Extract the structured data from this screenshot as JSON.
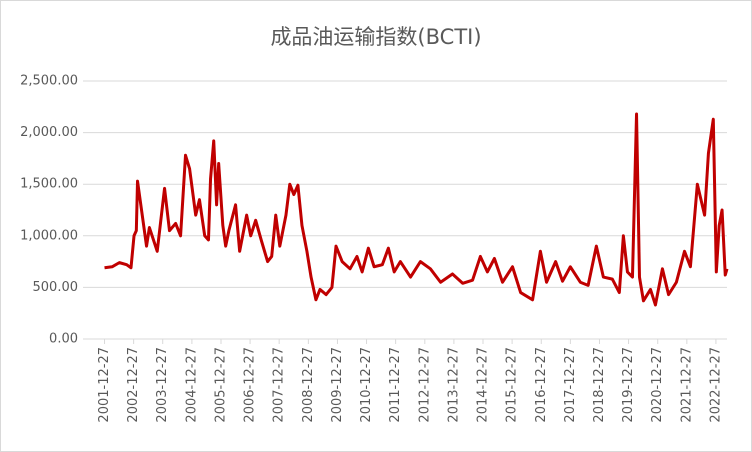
{
  "chart_data": {
    "type": "line",
    "title": "成品油运输指数(BCTI)",
    "x": [
      "2001-12-27",
      "2002-04-01",
      "2002-07-01",
      "2002-10-01",
      "2002-11-24",
      "2003-01-01",
      "2003-01-30",
      "2003-02-14",
      "2003-06-07",
      "2003-07-13",
      "2003-10-19",
      "2004-01-19",
      "2004-03-21",
      "2004-06-06",
      "2004-08-07",
      "2004-10-08",
      "2004-11-28",
      "2005-02-13",
      "2005-04-01",
      "2005-06-06",
      "2005-07-23",
      "2005-08-18",
      "2005-09-27",
      "2005-11-02",
      "2005-11-28",
      "2006-01-19",
      "2006-02-24",
      "2006-04-05",
      "2006-06-28",
      "2006-08-18",
      "2006-11-14",
      "2007-01-04",
      "2007-03-07",
      "2007-05-19",
      "2007-08-04",
      "2007-09-24",
      "2007-11-14",
      "2008-01-04",
      "2008-03-21",
      "2008-05-08",
      "2008-06-28",
      "2008-08-18",
      "2008-10-08",
      "2008-12-09",
      "2009-01-30",
      "2009-04-01",
      "2009-05-22",
      "2009-08-07",
      "2009-10-19",
      "2009-12-09",
      "2010-02-24",
      "2010-06-03",
      "2010-08-29",
      "2010-11-02",
      "2011-01-19",
      "2011-04-01",
      "2011-07-13",
      "2011-09-27",
      "2011-12-09",
      "2012-02-24",
      "2012-07-01",
      "2012-11-02",
      "2013-03-07",
      "2013-07-13",
      "2013-12-09",
      "2014-04-16",
      "2014-08-18",
      "2014-11-24",
      "2015-02-20",
      "2015-05-19",
      "2015-08-29",
      "2016-01-01",
      "2016-04-12",
      "2016-09-09",
      "2016-12-16",
      "2017-03-03",
      "2017-06-25",
      "2017-09-20",
      "2017-12-27",
      "2018-05-01",
      "2018-08-07",
      "2018-11-18",
      "2019-02-14",
      "2019-06-07",
      "2019-09-02",
      "2019-10-23",
      "2019-12-13",
      "2020-02-14",
      "2020-04-05",
      "2020-05-12",
      "2020-07-01",
      "2020-09-27",
      "2020-11-28",
      "2021-02-24",
      "2021-05-12",
      "2021-08-18",
      "2021-11-28",
      "2022-02-10",
      "2022-05-08",
      "2022-08-07",
      "2022-09-24",
      "2022-11-24",
      "2023-01-01",
      "2023-02-06",
      "2023-03-14",
      "2023-04-23",
      "2023-05-15"
    ],
    "series": [
      {
        "name": "BCTI",
        "color": "#c00000",
        "values": [
          690,
          700,
          740,
          720,
          690,
          1000,
          1050,
          1530,
          900,
          1080,
          850,
          1460,
          1050,
          1120,
          1000,
          1780,
          1650,
          1200,
          1350,
          1000,
          960,
          1550,
          1920,
          1300,
          1700,
          1100,
          900,
          1050,
          1300,
          850,
          1200,
          1000,
          1150,
          950,
          750,
          800,
          1200,
          900,
          1200,
          1500,
          1400,
          1490,
          1100,
          850,
          600,
          380,
          480,
          430,
          500,
          900,
          750,
          680,
          800,
          650,
          880,
          700,
          720,
          880,
          650,
          750,
          600,
          750,
          680,
          550,
          630,
          540,
          570,
          800,
          650,
          780,
          550,
          700,
          450,
          380,
          850,
          550,
          750,
          560,
          700,
          550,
          520,
          900,
          600,
          580,
          450,
          1000,
          650,
          600,
          2180,
          600,
          370,
          480,
          330,
          680,
          430,
          550,
          850,
          700,
          1500,
          1200,
          1800,
          2130,
          650,
          1100,
          1250,
          620,
          680
        ]
      }
    ],
    "xlim": [
      "2001-04-01",
      "2023-05-15"
    ],
    "xticks": [
      "2001-12-27",
      "2002-12-27",
      "2003-12-27",
      "2004-12-27",
      "2005-12-27",
      "2006-12-27",
      "2007-12-27",
      "2008-12-27",
      "2009-12-27",
      "2010-12-27",
      "2011-12-27",
      "2012-12-27",
      "2013-12-27",
      "2014-12-27",
      "2015-12-27",
      "2016-12-27",
      "2017-12-27",
      "2018-12-27",
      "2019-12-27",
      "2020-12-27",
      "2021-12-27",
      "2022-12-27"
    ],
    "ylim": [
      0,
      2500
    ],
    "yticks": [
      {
        "value": 0,
        "label": "0.00"
      },
      {
        "value": 500,
        "label": "500.00"
      },
      {
        "value": 1000,
        "label": "1,000.00"
      },
      {
        "value": 1500,
        "label": "1,500.00"
      },
      {
        "value": 2000,
        "label": "2,000.00"
      },
      {
        "value": 2500,
        "label": "2,500.00"
      }
    ],
    "grid": true
  }
}
